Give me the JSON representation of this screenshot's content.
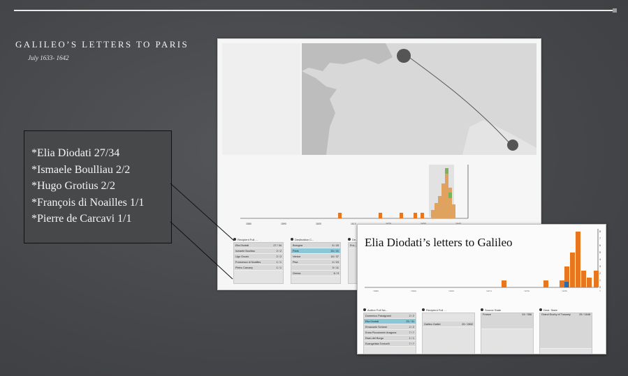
{
  "slide": {
    "title": "GALILEO’S LETTERS TO PARIS",
    "subtitle": "July 1633- 1642"
  },
  "recipients_list": [
    "*Elia Diodati 27/34",
    "*Ismaele Boulliau 2/2",
    "*Hugo Grotius 2/2",
    "*François di Noailles 1/1",
    "*Pierre de Carcavi 1/1"
  ],
  "colors": {
    "bar_orange": "#e8761e",
    "bar_tan": "#dfa25f",
    "bar_green": "#7bb25b",
    "bar_blue": "#2a6cb0",
    "selected_row": "#8cc7d8"
  },
  "screenshot1": {
    "timeline_ticks": [
      "1580",
      "1590",
      "1600",
      "1610",
      "1620",
      "1630",
      "1640"
    ],
    "panels": [
      {
        "title": "Recipient Full ...",
        "rows": [
          {
            "name": "Elia Diodati",
            "count": "27 / 34"
          },
          {
            "name": "Ismaele Boulliau",
            "count": "2 / 2"
          },
          {
            "name": "Ugo Grozio",
            "count": "2 / 2"
          },
          {
            "name": "Francesco di Noailles",
            "count": "1 / 1"
          },
          {
            "name": "Pietro Carcavy",
            "count": "1 / 1"
          }
        ]
      },
      {
        "title": "Destination C...",
        "rows": [
          {
            "name": "Bologna",
            "count": "6 / 43"
          },
          {
            "name": "Paris",
            "count": "33 / 41",
            "selected": true
          },
          {
            "name": "Venice",
            "count": "18 / 37"
          },
          {
            "name": "Pisa",
            "count": "4 / 24"
          },
          {
            "name": "",
            "count": "5 / 11"
          },
          {
            "name": "Genoa",
            "count": "6 / 9"
          }
        ]
      },
      {
        "title": "De...",
        "rows": [
          {
            "name": "Fra...",
            "count": ""
          }
        ]
      }
    ]
  },
  "screenshot2": {
    "title": "Elia Diodati’s letters to Galileo",
    "timeline_ticks": [
      "1580",
      "1590",
      "1600",
      "1610",
      "1620",
      "1630",
      "1640"
    ],
    "y_ticks": [
      "0",
      "1",
      "2",
      "3",
      "4",
      "5",
      "6",
      "7",
      "8"
    ],
    "panels": [
      {
        "title": "Author Full Na...",
        "rows": [
          {
            "name": "Domenico Passignani",
            "count": "2 / 2"
          },
          {
            "name": "Elia Diodati",
            "count": "25 / 31",
            "selected": true
          },
          {
            "name": "Emanuele Scherer",
            "count": "2 / 2"
          },
          {
            "name": "Enea Piccolomini Aragona",
            "count": "7 / 7"
          },
          {
            "name": "Esaù del Borgo",
            "count": "1 / 1"
          },
          {
            "name": "Evangelista Torricelli",
            "count": "7 / 7"
          }
        ]
      },
      {
        "title": "Recipient Full ...",
        "rows": [
          {
            "name": "Galileo Galilei",
            "count": "25 / 2832"
          }
        ]
      },
      {
        "title": "Source State",
        "rows": [
          {
            "name": "France",
            "count": "24 / 356"
          }
        ]
      },
      {
        "title": "Dest. State",
        "rows": [
          {
            "name": "Grand Duchy of Tuscany",
            "count": "25 / 1648"
          }
        ]
      }
    ]
  }
}
